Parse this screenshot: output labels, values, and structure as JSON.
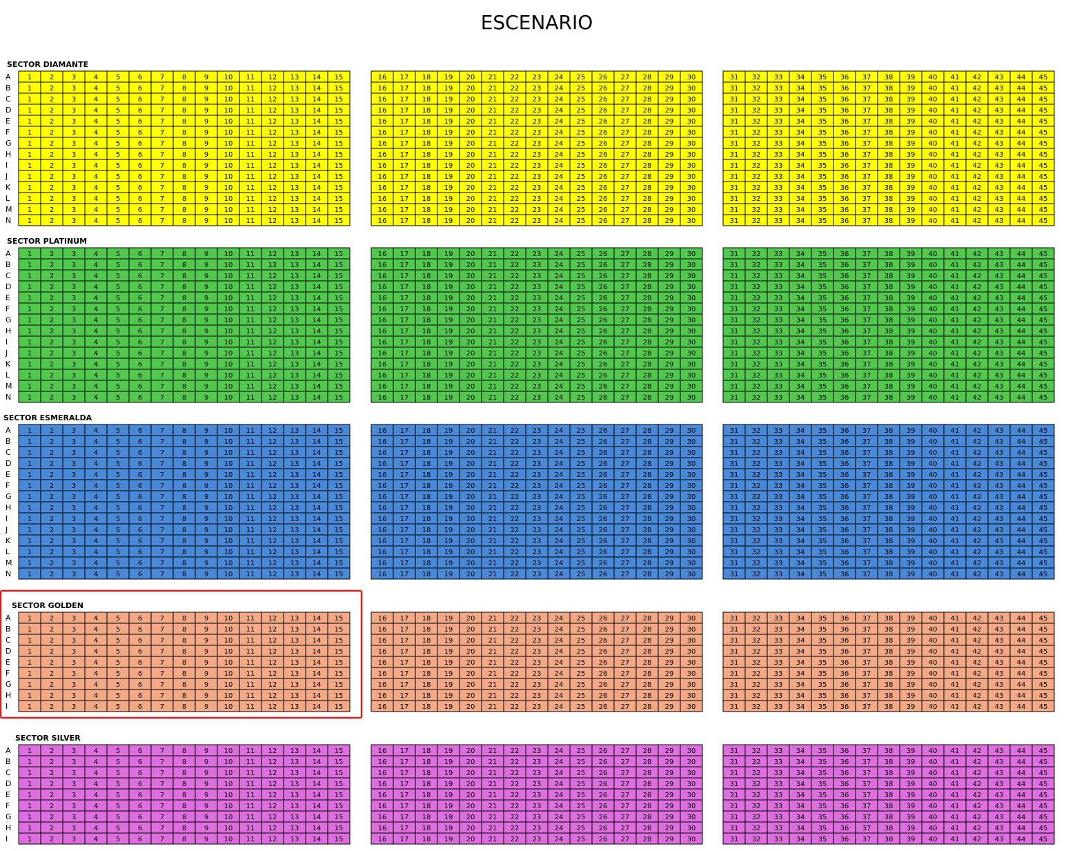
{
  "title": "ESCENARIO",
  "blocks": [
    [
      1,
      2,
      3,
      4,
      5,
      6,
      7,
      8,
      9,
      10,
      11,
      12,
      13,
      14,
      15
    ],
    [
      16,
      17,
      18,
      19,
      20,
      21,
      22,
      23,
      24,
      25,
      26,
      27,
      28,
      29,
      30
    ],
    [
      31,
      32,
      33,
      34,
      35,
      36,
      37,
      38,
      39,
      40,
      41,
      42,
      43,
      44,
      45
    ]
  ],
  "sectors": [
    {
      "name": "SECTOR DIAMANTE",
      "color": "#ffff00",
      "rows": [
        "A",
        "B",
        "C",
        "D",
        "E",
        "F",
        "G",
        "H",
        "I",
        "J",
        "K",
        "L",
        "M",
        "N"
      ]
    },
    {
      "name": "SECTOR PLATINUM",
      "color": "#52c84f",
      "rows": [
        "A",
        "B",
        "C",
        "D",
        "E",
        "F",
        "G",
        "H",
        "I",
        "J",
        "K",
        "L",
        "M",
        "N"
      ]
    },
    {
      "name": "SECTOR ESMERALDA",
      "color": "#4a89d8",
      "rows": [
        "A",
        "B",
        "C",
        "D",
        "E",
        "F",
        "G",
        "H",
        "I",
        "J",
        "K",
        "L",
        "M",
        "N"
      ]
    },
    {
      "name": "SECTOR GOLDEN",
      "color": "#f3a985",
      "rows": [
        "A",
        "B",
        "C",
        "D",
        "E",
        "F",
        "G",
        "H",
        "I"
      ],
      "highlighted": true
    },
    {
      "name": "SECTOR SILVER",
      "color": "#dd6edd",
      "rows": [
        "A",
        "B",
        "C",
        "D",
        "E",
        "F",
        "G",
        "H",
        "I"
      ]
    }
  ]
}
